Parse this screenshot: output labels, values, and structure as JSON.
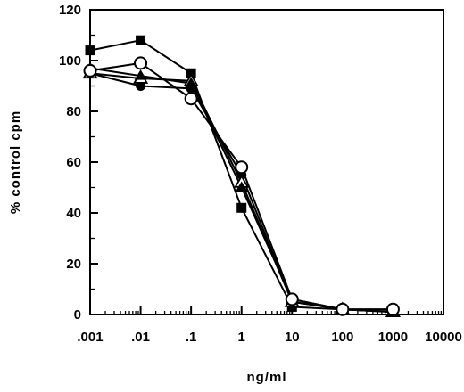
{
  "chart_data": {
    "type": "line",
    "title": "",
    "xlabel": "ng/ml",
    "ylabel": "% control cpm",
    "xscale": "log",
    "xlim": [
      0.001,
      10000
    ],
    "ylim": [
      0,
      120
    ],
    "grid": false,
    "x_ticks": [
      0.001,
      0.01,
      0.1,
      1,
      10,
      100,
      1000,
      10000
    ],
    "x_tick_labels": [
      ".001",
      ".01",
      ".1",
      "1",
      "10",
      "100",
      "1000",
      "10000"
    ],
    "y_ticks": [
      0,
      20,
      40,
      60,
      80,
      100,
      120
    ],
    "y_tick_labels": [
      "0",
      "20",
      "40",
      "60",
      "80",
      "100",
      "120"
    ],
    "x": [
      0.001,
      0.01,
      0.1,
      1,
      10,
      100,
      1000
    ],
    "series": [
      {
        "marker": "filled-square",
        "values": [
          104,
          108,
          95,
          42,
          3,
          2,
          2
        ]
      },
      {
        "marker": "filled-circle",
        "values": [
          95,
          90,
          89,
          55,
          5,
          2,
          1
        ]
      },
      {
        "marker": "open-triangle",
        "values": [
          95,
          93,
          92,
          52,
          5,
          2,
          1
        ]
      },
      {
        "marker": "filled-triangle",
        "values": [
          97,
          94,
          91,
          50,
          6,
          2,
          1
        ]
      },
      {
        "marker": "open-circle",
        "values": [
          96,
          99,
          85,
          58,
          6,
          2,
          2
        ]
      }
    ]
  }
}
